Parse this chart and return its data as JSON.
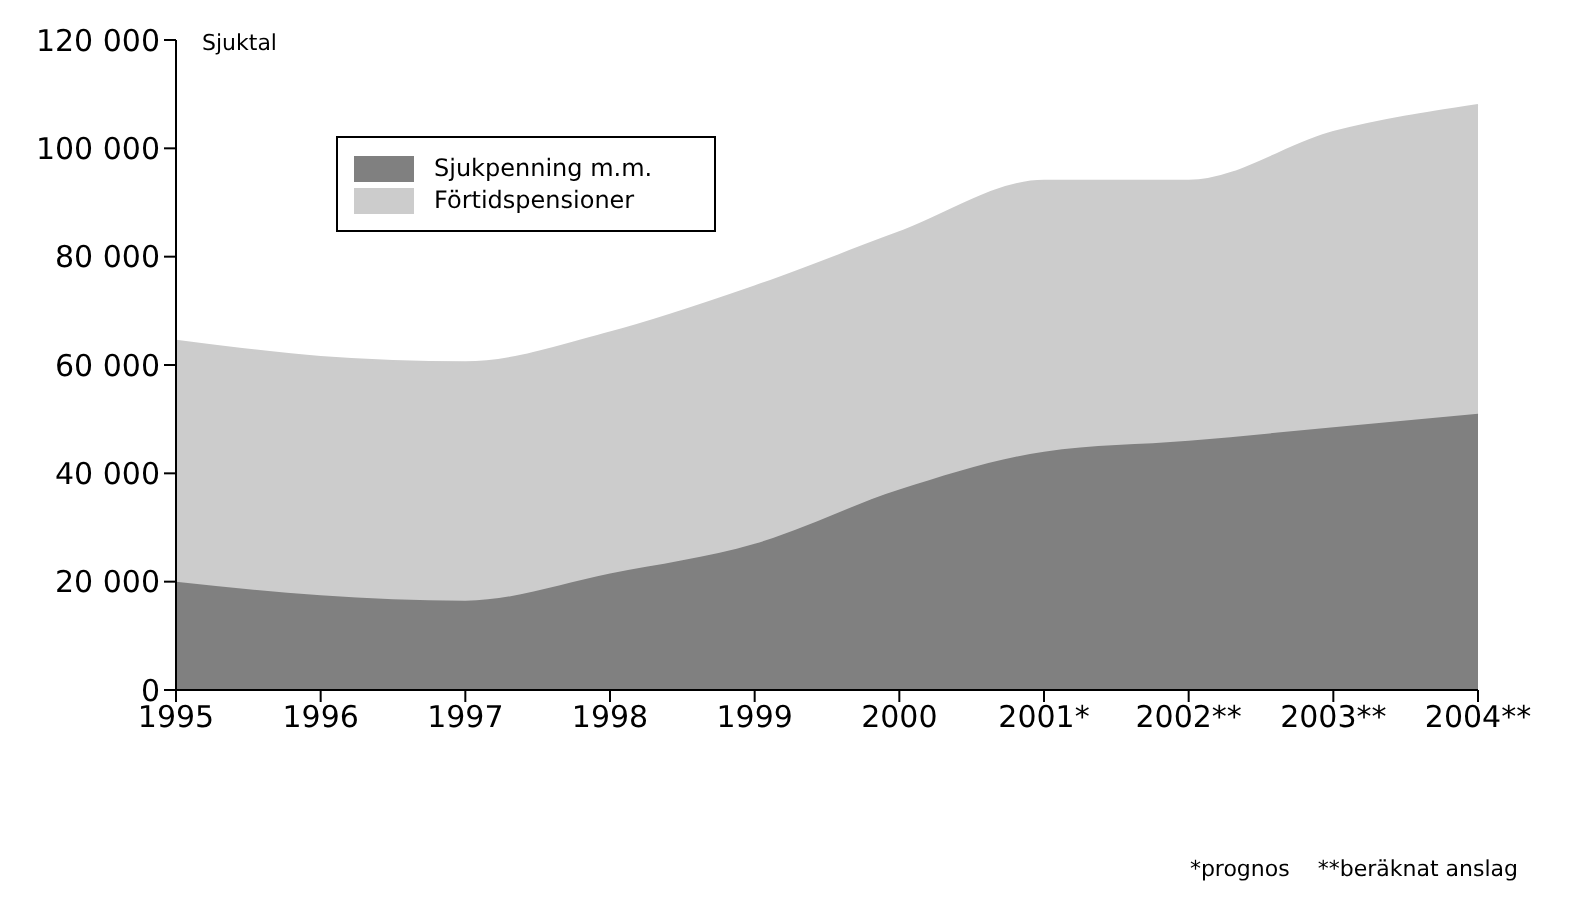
{
  "chart_data": {
    "type": "area",
    "stacked": true,
    "ylabel": "Sjuktal",
    "categories": [
      "1995",
      "1996",
      "1997",
      "1998",
      "1999",
      "2000",
      "2001*",
      "2002**",
      "2003**",
      "2004**"
    ],
    "series": [
      {
        "name": "Sjukpenning m.m.",
        "color": "#808080",
        "values": [
          20000,
          17500,
          16500,
          21500,
          27000,
          37000,
          44000,
          46000,
          48500,
          51000
        ]
      },
      {
        "name": "Förtidspensioner",
        "color": "#cccccc",
        "values": [
          44500,
          44000,
          44000,
          44500,
          47500,
          47500,
          50000,
          48000,
          54500,
          57000
        ]
      }
    ],
    "ylim": [
      0,
      120000
    ],
    "yticks": [
      {
        "value": 0,
        "label": "0"
      },
      {
        "value": 20000,
        "label": "20 000"
      },
      {
        "value": 40000,
        "label": "40 000"
      },
      {
        "value": 60000,
        "label": "60 000"
      },
      {
        "value": 80000,
        "label": "80 000"
      },
      {
        "value": 100000,
        "label": "100 000"
      },
      {
        "value": 120000,
        "label": "120 000"
      }
    ],
    "legend": "top left",
    "grid": false,
    "annotations": [
      "*prognos",
      "**beräknat anslag"
    ]
  }
}
